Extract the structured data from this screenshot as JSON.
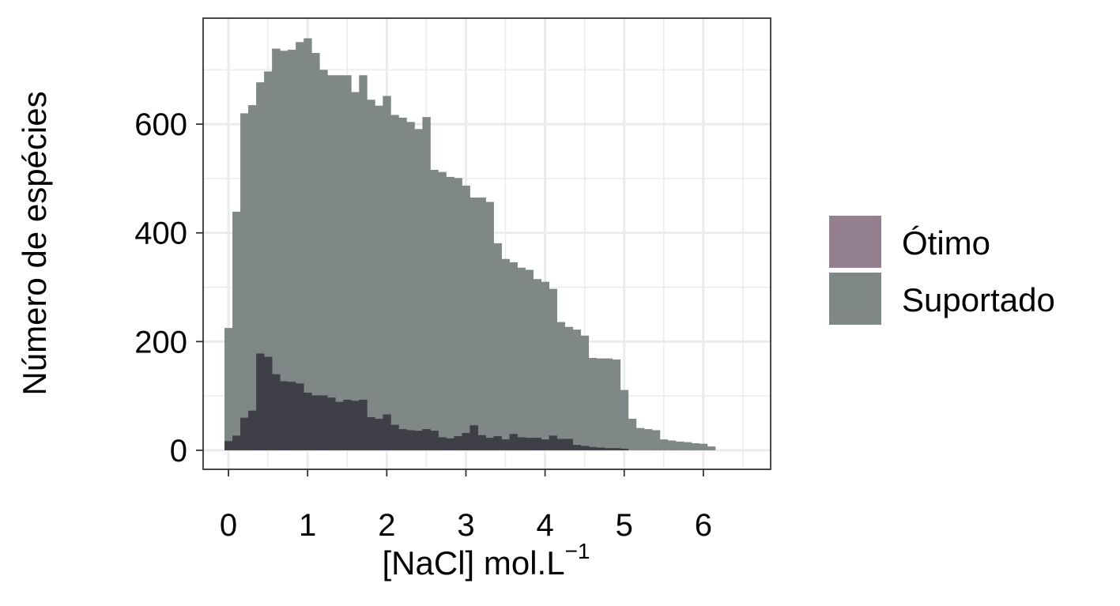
{
  "chart_data": {
    "type": "bar",
    "subtype": "overlaid-histogram",
    "xlabel": "[NaCl] mol.L",
    "xlabel_superscript": "−1",
    "ylabel": "Número de espécies",
    "xlim": [
      -0.32,
      6.85
    ],
    "ylim": [
      -35,
      795
    ],
    "xticks": [
      0,
      1,
      2,
      3,
      4,
      5,
      6
    ],
    "yticks": [
      0,
      200,
      400,
      600
    ],
    "bin_width": 0.1,
    "grid": true,
    "legend_position": "right",
    "series": [
      {
        "name": "Ótimo",
        "color": "#3f3f48",
        "legend_color": "#94808f",
        "x": [
          0.0,
          0.1,
          0.2,
          0.3,
          0.4,
          0.5,
          0.6,
          0.7,
          0.8,
          0.9,
          1.0,
          1.1,
          1.2,
          1.3,
          1.4,
          1.5,
          1.6,
          1.7,
          1.8,
          1.9,
          2.0,
          2.1,
          2.2,
          2.3,
          2.4,
          2.5,
          2.6,
          2.7,
          2.8,
          2.9,
          3.0,
          3.1,
          3.2,
          3.3,
          3.4,
          3.5,
          3.6,
          3.7,
          3.8,
          3.9,
          4.0,
          4.1,
          4.2,
          4.3,
          4.4,
          4.5,
          4.6,
          4.7,
          4.8,
          4.9,
          5.0
        ],
        "values": [
          17,
          27,
          60,
          73,
          178,
          172,
          140,
          127,
          126,
          123,
          106,
          101,
          101,
          97,
          89,
          93,
          91,
          93,
          61,
          58,
          66,
          47,
          39,
          37,
          36,
          39,
          36,
          24,
          22,
          26,
          32,
          46,
          28,
          23,
          26,
          20,
          30,
          24,
          23,
          23,
          20,
          27,
          21,
          21,
          10,
          8,
          6,
          5,
          4,
          4,
          3
        ]
      },
      {
        "name": "Suportado",
        "color": "#7f8787",
        "x": [
          0.0,
          0.1,
          0.2,
          0.3,
          0.4,
          0.5,
          0.6,
          0.7,
          0.8,
          0.9,
          1.0,
          1.1,
          1.2,
          1.3,
          1.4,
          1.5,
          1.6,
          1.7,
          1.8,
          1.9,
          2.0,
          2.1,
          2.2,
          2.3,
          2.4,
          2.5,
          2.6,
          2.7,
          2.8,
          2.9,
          3.0,
          3.1,
          3.2,
          3.3,
          3.4,
          3.5,
          3.6,
          3.7,
          3.8,
          3.9,
          4.0,
          4.1,
          4.2,
          4.3,
          4.4,
          4.5,
          4.6,
          4.7,
          4.8,
          4.9,
          5.0,
          5.1,
          5.2,
          5.3,
          5.4,
          5.5,
          5.6,
          5.7,
          5.8,
          5.9,
          6.0,
          6.1
        ],
        "values": [
          225,
          439,
          620,
          635,
          677,
          697,
          739,
          735,
          737,
          751,
          758,
          731,
          700,
          690,
          690,
          690,
          659,
          690,
          645,
          634,
          652,
          617,
          612,
          604,
          591,
          613,
          516,
          512,
          503,
          501,
          487,
          465,
          465,
          457,
          381,
          352,
          346,
          336,
          332,
          315,
          310,
          297,
          236,
          227,
          222,
          211,
          170,
          169,
          169,
          167,
          111,
          58,
          41,
          39,
          37,
          20,
          18,
          16,
          15,
          13,
          12,
          7
        ]
      }
    ]
  }
}
